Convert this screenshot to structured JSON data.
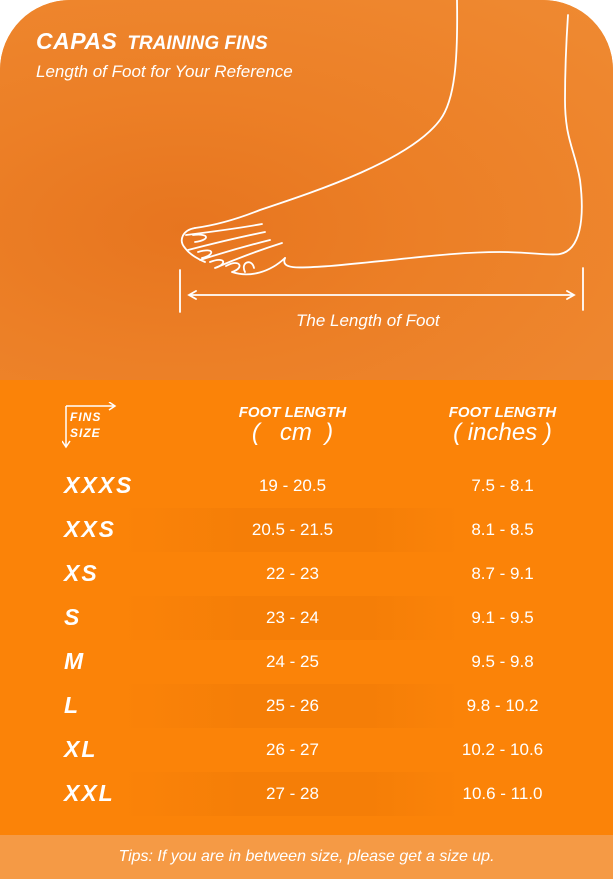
{
  "header": {
    "brand": "CAPAS",
    "product": "TRAINING FINS",
    "subtitle": "Length of Foot for Your Reference"
  },
  "illustration": {
    "icon": "foot-outline-icon",
    "measure_label": "The Length of Foot"
  },
  "table": {
    "corner": {
      "line1": "FINS",
      "line2": "SIZE"
    },
    "columns": [
      {
        "line1": "FOOT LENGTH",
        "line2": "(   cm  )"
      },
      {
        "line1": "FOOT LENGTH",
        "line2": "( inches )"
      }
    ],
    "rows": [
      {
        "size": "XXXS",
        "cm": "19 - 20.5",
        "in": "7.5 - 8.1"
      },
      {
        "size": "XXS",
        "cm": "20.5 - 21.5",
        "in": "8.1 - 8.5"
      },
      {
        "size": "XS",
        "cm": "22 - 23",
        "in": "8.7 - 9.1"
      },
      {
        "size": "S",
        "cm": "23 - 24",
        "in": "9.1 - 9.5"
      },
      {
        "size": "M",
        "cm": "24 - 25",
        "in": "9.5 - 9.8"
      },
      {
        "size": "L",
        "cm": "25 - 26",
        "in": "9.8 - 10.2"
      },
      {
        "size": "XL",
        "cm": "26 - 27",
        "in": "10.2 - 10.6"
      },
      {
        "size": "XXL",
        "cm": "27 - 28",
        "in": "10.6 - 11.0"
      }
    ]
  },
  "tips": "Tips: If you are in between size, please get a size up.",
  "colors": {
    "accent": "#fb8308",
    "top_bg": "#ec7f26",
    "tips_bg": "#f59a45"
  }
}
